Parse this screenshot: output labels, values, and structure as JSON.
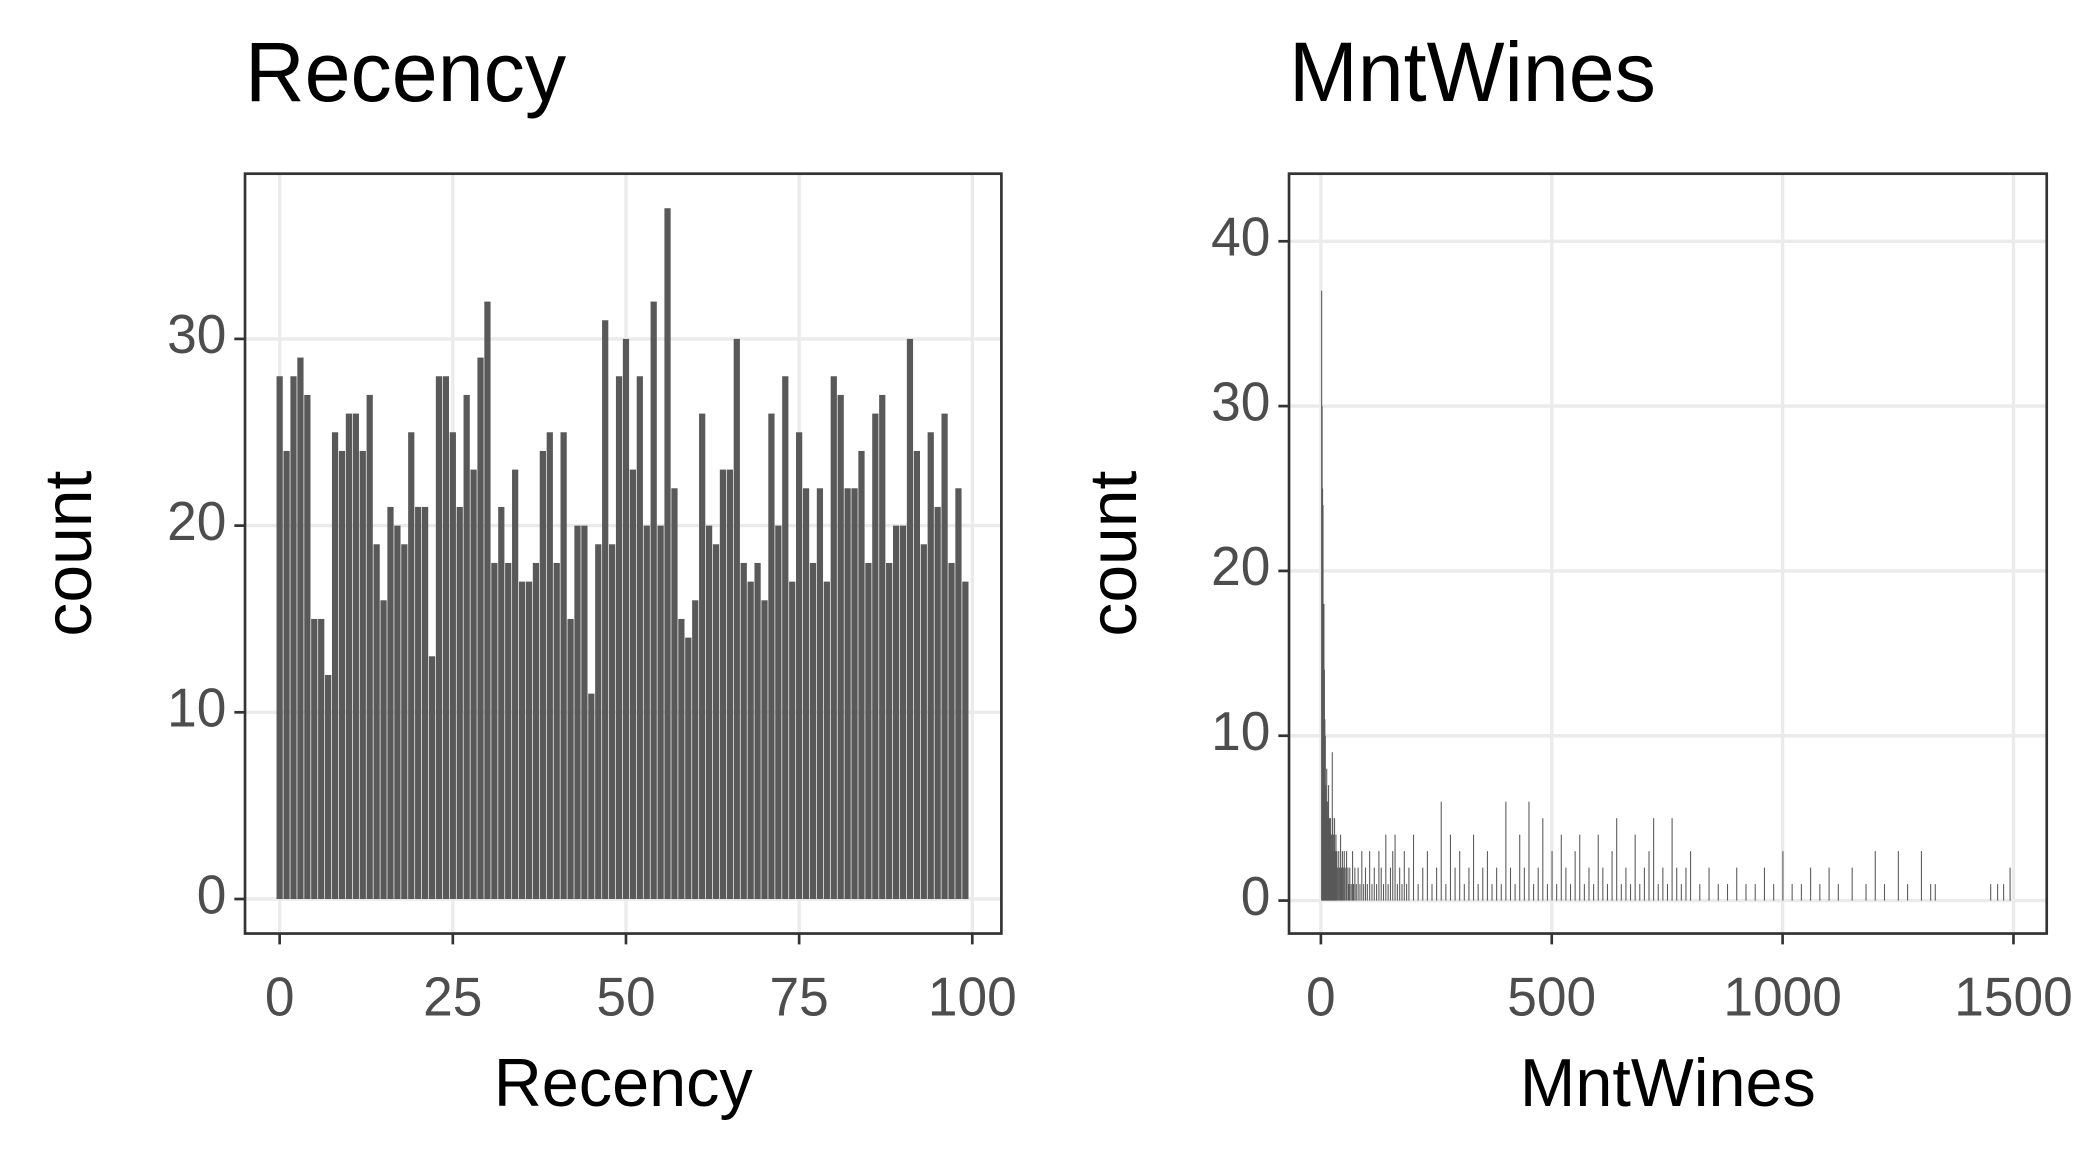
{
  "chart_data": [
    {
      "type": "bar",
      "title": "Recency",
      "x_label": "Recency",
      "y_label": "count",
      "color": "#595959",
      "x": [
        0,
        1,
        2,
        3,
        4,
        5,
        6,
        7,
        8,
        9,
        10,
        11,
        12,
        13,
        14,
        15,
        16,
        17,
        18,
        19,
        20,
        21,
        22,
        23,
        24,
        25,
        26,
        27,
        28,
        29,
        30,
        31,
        32,
        33,
        34,
        35,
        36,
        37,
        38,
        39,
        40,
        41,
        42,
        43,
        44,
        45,
        46,
        47,
        48,
        49,
        50,
        51,
        52,
        53,
        54,
        55,
        56,
        57,
        58,
        59,
        60,
        61,
        62,
        63,
        64,
        65,
        66,
        67,
        68,
        69,
        70,
        71,
        72,
        73,
        74,
        75,
        76,
        77,
        78,
        79,
        80,
        81,
        82,
        83,
        84,
        85,
        86,
        87,
        88,
        89,
        90,
        91,
        92,
        93,
        94,
        95,
        96,
        97,
        98,
        99
      ],
      "values": [
        28,
        24,
        28,
        29,
        27,
        15,
        15,
        12,
        25,
        24,
        26,
        26,
        24,
        27,
        19,
        16,
        21,
        20,
        19,
        25,
        21,
        21,
        13,
        28,
        28,
        25,
        21,
        27,
        23,
        29,
        32,
        18,
        21,
        18,
        23,
        17,
        17,
        18,
        24,
        25,
        18,
        25,
        15,
        20,
        20,
        11,
        19,
        31,
        19,
        28,
        30,
        23,
        28,
        20,
        32,
        20,
        37,
        22,
        15,
        14,
        16,
        26,
        20,
        19,
        23,
        23,
        30,
        18,
        17,
        18,
        16,
        26,
        20,
        28,
        17,
        25,
        22,
        18,
        22,
        17,
        28,
        27,
        22,
        22,
        24,
        18,
        26,
        27,
        18,
        20,
        20,
        30,
        24,
        19,
        25,
        21,
        26,
        18,
        22,
        17
      ],
      "bar_width": 0.9,
      "xlim": [
        -5,
        104.2
      ],
      "ylim": [
        -1.85,
        38.85
      ],
      "xticks": [
        0,
        25,
        50,
        75,
        100
      ],
      "yticks": [
        0,
        10,
        20,
        30
      ],
      "grid": true
    },
    {
      "type": "bar",
      "title": "MntWines",
      "x_label": "MntWines",
      "y_label": "count",
      "color": "#595959",
      "x": [
        1,
        2,
        3,
        4,
        5,
        6,
        7,
        8,
        9,
        10,
        11,
        12,
        13,
        14,
        15,
        16,
        17,
        18,
        19,
        20,
        21,
        22,
        23,
        24,
        25,
        26,
        27,
        28,
        29,
        30,
        32,
        34,
        36,
        38,
        40,
        42,
        44,
        46,
        48,
        50,
        52,
        55,
        58,
        60,
        62,
        65,
        68,
        70,
        73,
        76,
        80,
        84,
        88,
        92,
        96,
        100,
        105,
        110,
        115,
        120,
        125,
        130,
        135,
        140,
        145,
        150,
        155,
        160,
        165,
        170,
        175,
        180,
        185,
        190,
        200,
        210,
        220,
        230,
        240,
        250,
        260,
        270,
        280,
        290,
        300,
        310,
        320,
        330,
        340,
        350,
        360,
        370,
        380,
        390,
        400,
        410,
        420,
        430,
        440,
        450,
        460,
        470,
        480,
        490,
        500,
        510,
        520,
        530,
        540,
        550,
        560,
        570,
        580,
        590,
        600,
        610,
        620,
        630,
        640,
        650,
        660,
        670,
        680,
        690,
        700,
        710,
        720,
        730,
        740,
        750,
        760,
        770,
        780,
        790,
        800,
        820,
        840,
        860,
        880,
        900,
        920,
        940,
        960,
        980,
        1000,
        1020,
        1040,
        1060,
        1080,
        1100,
        1120,
        1150,
        1180,
        1200,
        1220,
        1250,
        1270,
        1300,
        1320,
        1330,
        1450,
        1465,
        1478,
        1492
      ],
      "values": [
        37,
        30,
        25,
        24,
        17,
        18,
        14,
        11,
        10,
        7,
        6,
        8,
        6,
        5,
        6,
        7,
        4,
        5,
        3,
        5,
        4,
        3,
        4,
        9,
        5,
        3,
        4,
        3,
        5,
        3,
        4,
        3,
        2,
        3,
        2,
        4,
        2,
        3,
        2,
        3,
        2,
        3,
        2,
        1,
        2,
        1,
        3,
        1,
        2,
        1,
        2,
        1,
        3,
        1,
        2,
        1,
        3,
        1,
        2,
        1,
        3,
        2,
        1,
        4,
        1,
        2,
        3,
        4,
        1,
        2,
        1,
        3,
        1,
        2,
        4,
        1,
        2,
        3,
        1,
        2,
        6,
        1,
        4,
        2,
        3,
        1,
        2,
        4,
        1,
        2,
        3,
        1,
        2,
        1,
        6,
        2,
        1,
        4,
        2,
        6,
        1,
        2,
        5,
        1,
        3,
        1,
        4,
        2,
        1,
        3,
        4,
        1,
        2,
        1,
        4,
        2,
        1,
        3,
        5,
        1,
        2,
        1,
        4,
        1,
        2,
        3,
        5,
        1,
        2,
        1,
        5,
        2,
        1,
        2,
        3,
        1,
        2,
        1,
        1,
        2,
        1,
        1,
        2,
        1,
        3,
        1,
        1,
        2,
        1,
        2,
        1,
        2,
        1,
        3,
        1,
        3,
        1,
        3,
        1,
        1,
        1,
        1,
        1,
        2
      ],
      "bar_width": 1,
      "xlim": [
        -69,
        1572
      ],
      "ylim": [
        -2,
        44.1
      ],
      "xticks": [
        0,
        500,
        1000,
        1500
      ],
      "yticks": [
        0,
        10,
        20,
        30,
        40
      ],
      "grid": true
    }
  ]
}
